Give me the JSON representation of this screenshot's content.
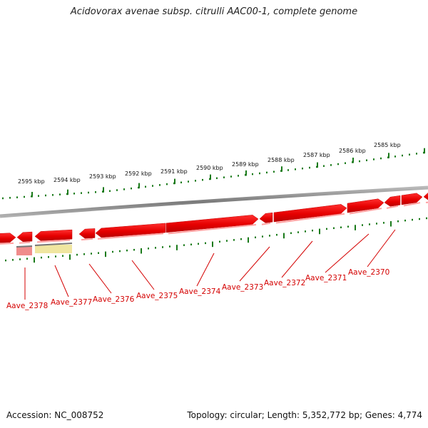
{
  "title": "Acidovorax avenae subsp. citrulli AAC00-1, complete genome",
  "footer": {
    "accession": "Accession: NC_008752",
    "topology": "Topology: circular; Length: 5,352,772 bp; Genes: 4,774"
  },
  "kbp_labels": [
    "2595 kbp",
    "2594 kbp",
    "2593 kbp",
    "2592 kbp",
    "2591 kbp",
    "2590 kbp",
    "2589 kbp",
    "2588 kbp",
    "2587 kbp",
    "2586 kbp",
    "2585 kbp"
  ],
  "gene_labels": [
    "Aave_2378",
    "Aave_2377",
    "Aave_2376",
    "Aave_2375",
    "Aave_2374",
    "Aave_2373",
    "Aave_2372",
    "Aave_2371",
    "Aave_2370"
  ],
  "colors": {
    "gene": "#e60000",
    "gene_light": "#ff8a8a",
    "tick": "#1a7a1a",
    "backbone": "#8a8a8a",
    "label": "#d40000",
    "pseudo_pink": "#f08c8c",
    "pseudo_yellow": "#f0e6a0"
  }
}
